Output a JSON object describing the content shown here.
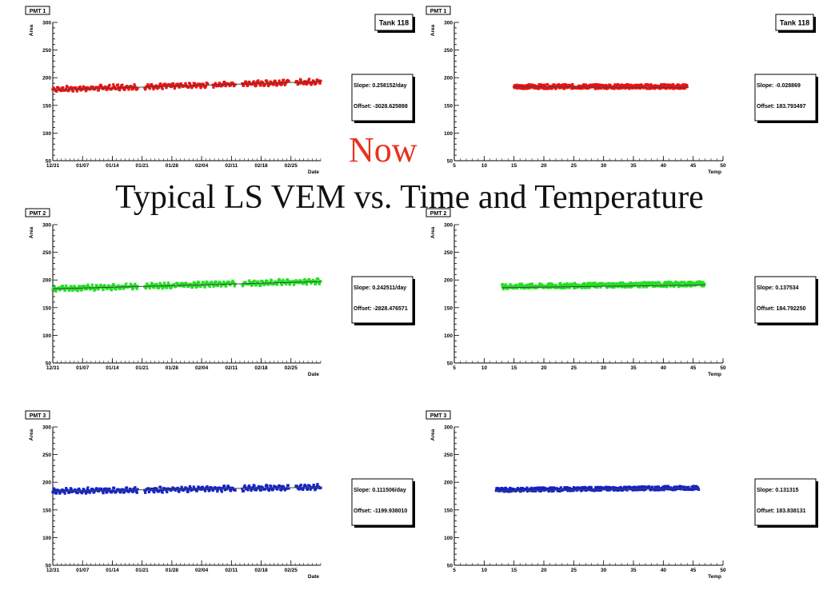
{
  "overlay": {
    "now_label": "Now",
    "title": "Typical LS VEM vs. Time and Temperature"
  },
  "tank_label": "Tank 118",
  "colors": {
    "pmt1": "#ee1111",
    "pmt2": "#22e022",
    "pmt3": "#1122cc",
    "fit": "#444444",
    "axis": "#000000"
  },
  "chart_data": [
    {
      "type": "scatter",
      "id": "pmt1-time",
      "pmt_label": "PMT 1",
      "xlabel": "Date",
      "ylabel": "Area",
      "x_ticks": [
        "12/31",
        "01/07",
        "01/14",
        "01/21",
        "01/28",
        "02/04",
        "02/11",
        "02/18",
        "02/25"
      ],
      "xlim_days": [
        0,
        63
      ],
      "ylim": [
        50,
        300
      ],
      "y_ticks": [
        50,
        100,
        150,
        200,
        250,
        300
      ],
      "color_key": "pmt1",
      "band": {
        "center_start": 179,
        "center_end": 193,
        "x_start": 0,
        "x_end": 63,
        "spread": 5,
        "gaps": [
          [
            20,
            21.5
          ],
          [
            36.5,
            37.5
          ],
          [
            43,
            44.5
          ],
          [
            55.5,
            57
          ]
        ]
      },
      "fit": {
        "y_start": 178,
        "y_end": 193
      },
      "stats": {
        "slope": "Slope:  0.258152/day",
        "offset": "Offset: -3028.625898"
      },
      "show_tank": true
    },
    {
      "type": "scatter",
      "id": "pmt1-temp",
      "pmt_label": "PMT 1",
      "xlabel": "Temp",
      "ylabel": "Area",
      "x_ticks": [
        "5",
        "10",
        "15",
        "20",
        "25",
        "30",
        "35",
        "40",
        "45",
        "50"
      ],
      "xlim": [
        5,
        50
      ],
      "ylim": [
        50,
        300
      ],
      "y_ticks": [
        50,
        100,
        150,
        200,
        250,
        300
      ],
      "color_key": "pmt1",
      "band": {
        "center_start": 184,
        "center_end": 184,
        "x_start": 15,
        "x_end": 44,
        "spread": 8,
        "gaps": []
      },
      "fit": {
        "y_start": 184,
        "y_end": 182
      },
      "stats": {
        "slope": "Slope:  -0.028869",
        "offset": "Offset: 183.793497"
      },
      "show_tank": true
    },
    {
      "type": "scatter",
      "id": "pmt2-time",
      "pmt_label": "PMT 2",
      "xlabel": "Date",
      "ylabel": "Area",
      "x_ticks": [
        "12/31",
        "01/07",
        "01/14",
        "01/21",
        "01/28",
        "02/04",
        "02/11",
        "02/18",
        "02/25"
      ],
      "xlim_days": [
        0,
        63
      ],
      "ylim": [
        50,
        300
      ],
      "y_ticks": [
        50,
        100,
        150,
        200,
        250,
        300
      ],
      "color_key": "pmt2",
      "band": {
        "center_start": 184,
        "center_end": 198,
        "x_start": 0,
        "x_end": 63,
        "spread": 5,
        "gaps": [
          [
            20,
            21.5
          ],
          [
            43,
            44.5
          ]
        ]
      },
      "fit": {
        "y_start": 184,
        "y_end": 197
      },
      "stats": {
        "slope": "Slope:  0.242511/day",
        "offset": "Offset: -2828.476571"
      },
      "show_tank": false
    },
    {
      "type": "scatter",
      "id": "pmt2-temp",
      "pmt_label": "PMT 2",
      "xlabel": "Temp",
      "ylabel": "Area",
      "x_ticks": [
        "5",
        "10",
        "15",
        "20",
        "25",
        "30",
        "35",
        "40",
        "45",
        "50"
      ],
      "xlim": [
        5,
        50
      ],
      "ylim": [
        50,
        300
      ],
      "y_ticks": [
        50,
        100,
        150,
        200,
        250,
        300
      ],
      "color_key": "pmt2",
      "band": {
        "center_start": 188,
        "center_end": 193,
        "x_start": 13,
        "x_end": 47,
        "spread": 9,
        "gaps": []
      },
      "fit": {
        "y_start": 186,
        "y_end": 191
      },
      "stats": {
        "slope": "Slope:  0.137534",
        "offset": "Offset: 184.792250"
      },
      "show_tank": false
    },
    {
      "type": "scatter",
      "id": "pmt3-time",
      "pmt_label": "PMT 3",
      "xlabel": "Date",
      "ylabel": "Area",
      "x_ticks": [
        "12/31",
        "01/07",
        "01/14",
        "01/21",
        "01/28",
        "02/04",
        "02/11",
        "02/18",
        "02/25"
      ],
      "xlim_days": [
        0,
        63
      ],
      "ylim": [
        50,
        300
      ],
      "y_ticks": [
        50,
        100,
        150,
        200,
        250,
        300
      ],
      "color_key": "pmt3",
      "band": {
        "center_start": 184,
        "center_end": 191,
        "x_start": 0,
        "x_end": 63,
        "spread": 5,
        "gaps": [
          [
            20,
            21.5
          ],
          [
            43,
            44.5
          ],
          [
            55.5,
            57
          ]
        ]
      },
      "fit": {
        "y_start": 184,
        "y_end": 191
      },
      "stats": {
        "slope": "Slope:  0.111506/day",
        "offset": "Offset: -1199.938010"
      },
      "show_tank": false
    },
    {
      "type": "scatter",
      "id": "pmt3-temp",
      "pmt_label": "PMT 3",
      "xlabel": "Temp",
      "ylabel": "Area",
      "x_ticks": [
        "5",
        "10",
        "15",
        "20",
        "25",
        "30",
        "35",
        "40",
        "45",
        "50"
      ],
      "xlim": [
        5,
        50
      ],
      "ylim": [
        50,
        300
      ],
      "y_ticks": [
        50,
        100,
        150,
        200,
        250,
        300
      ],
      "color_key": "pmt3",
      "band": {
        "center_start": 186,
        "center_end": 190,
        "x_start": 12,
        "x_end": 46,
        "spread": 7,
        "gaps": []
      },
      "fit": {
        "y_start": 184,
        "y_end": 190
      },
      "stats": {
        "slope": "Slope:  0.131315",
        "offset": "Offset: 183.838131"
      },
      "show_tank": false
    }
  ]
}
